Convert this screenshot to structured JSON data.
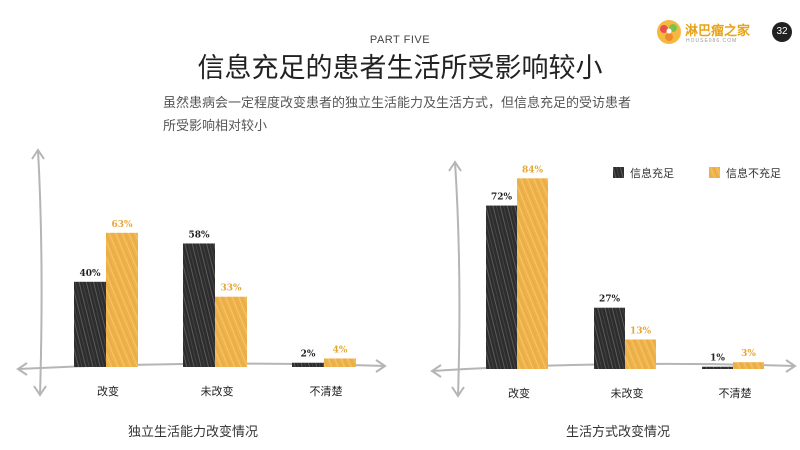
{
  "header": {
    "part_label": "PART FIVE",
    "title": "信息充足的患者生活所受影响较小",
    "subtitle": "虽然患病会一定程度改变患者的独立生活能力及生活方式，但信息充足的受访患者所受影响相对较小",
    "logo_text": "淋巴瘤之家",
    "logo_subtext": "HOUSE086.COM",
    "page_number": "32"
  },
  "colors": {
    "dark_bar": "#3a3a3a",
    "gold_bar": "#f0b54a",
    "gold_label": "#e6a534",
    "axis": "#b5b5b5"
  },
  "chart_data": [
    {
      "type": "bar",
      "title": "独立生活能力改变情况",
      "categories": [
        "改变",
        "未改变",
        "不清楚"
      ],
      "series": [
        {
          "name": "信息充足",
          "values": [
            40,
            58,
            2
          ],
          "labels": [
            "40%",
            "58%",
            "2%"
          ]
        },
        {
          "name": "信息不充足",
          "values": [
            63,
            33,
            4
          ],
          "labels": [
            "63%",
            "33%",
            "4%"
          ]
        }
      ],
      "ylim": [
        0,
        100
      ],
      "grid": false,
      "legend": "none"
    },
    {
      "type": "bar",
      "title": "生活方式改变情况",
      "categories": [
        "改变",
        "未改变",
        "不清楚"
      ],
      "series": [
        {
          "name": "信息充足",
          "values": [
            72,
            27,
            1
          ],
          "labels": [
            "72%",
            "27%",
            "1%"
          ]
        },
        {
          "name": "信息不充足",
          "values": [
            84,
            13,
            3
          ],
          "labels": [
            "84%",
            "13%",
            "3%"
          ]
        }
      ],
      "ylim": [
        0,
        100
      ],
      "grid": false,
      "legend": "top-right"
    }
  ]
}
